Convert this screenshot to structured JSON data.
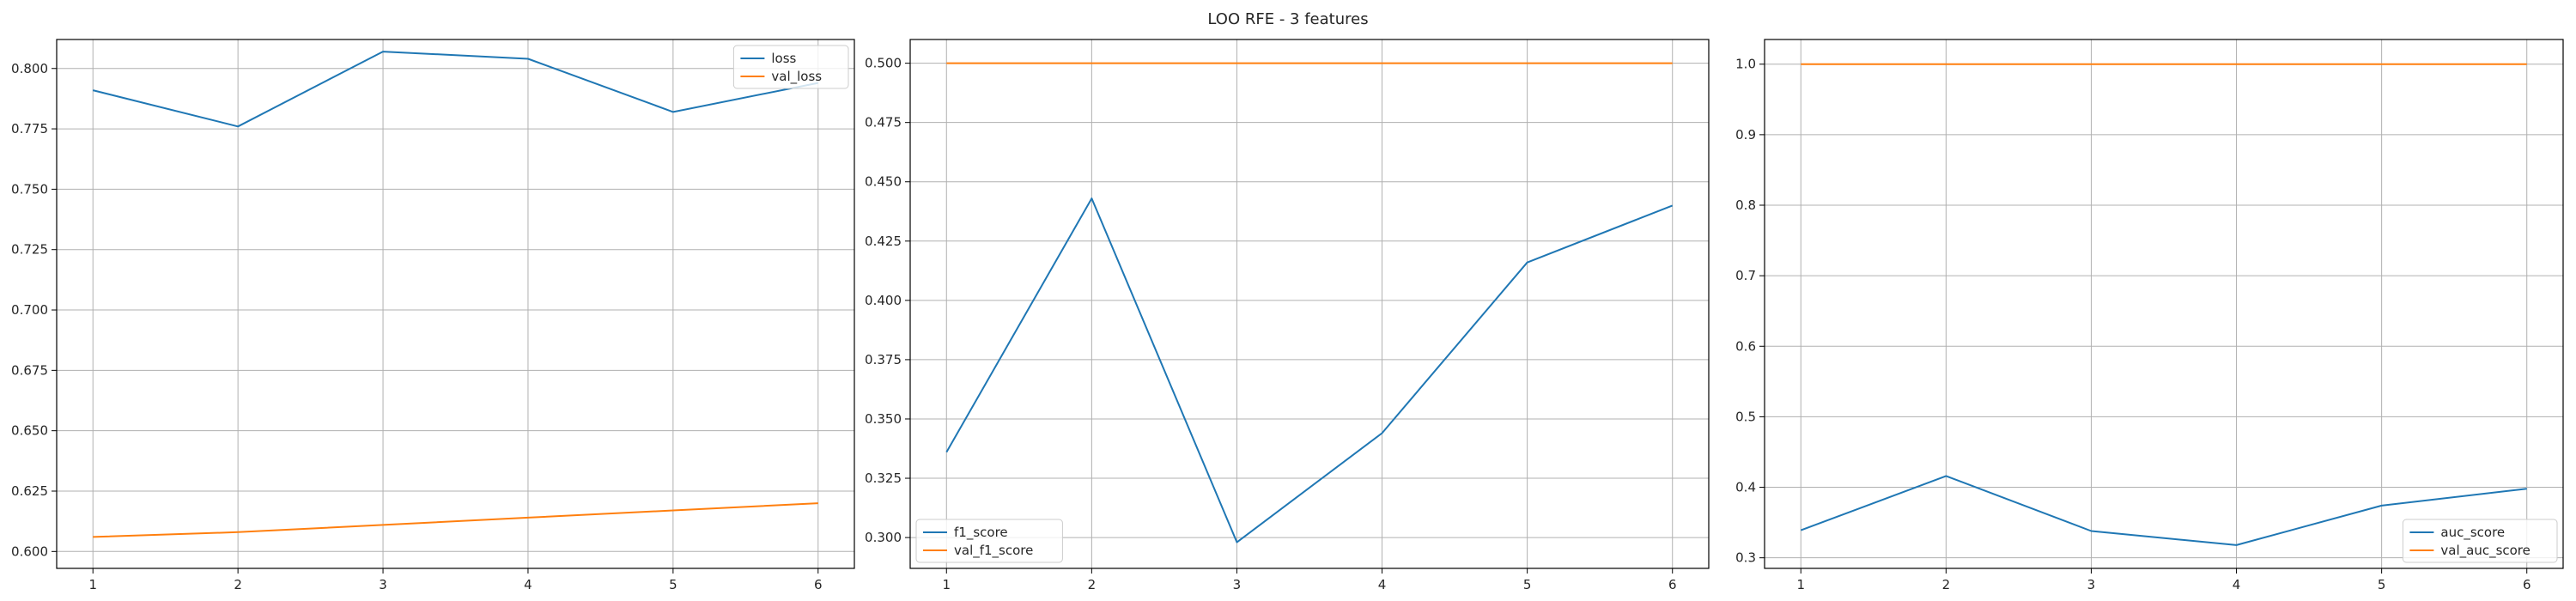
{
  "figure": {
    "title": "LOO RFE - 3 features"
  },
  "colors": {
    "train": "#1f77b4",
    "val": "#ff7f0e",
    "grid": "#b0b0b0",
    "axes": "#000000"
  },
  "chart_data": [
    {
      "type": "line",
      "x": [
        1,
        2,
        3,
        4,
        5,
        6
      ],
      "ylim": [
        0.593,
        0.812
      ],
      "xlim": [
        0.75,
        6.25
      ],
      "yticks": [
        0.6,
        0.625,
        0.65,
        0.675,
        0.7,
        0.725,
        0.75,
        0.775,
        0.8
      ],
      "ytick_labels": [
        "0.600",
        "0.625",
        "0.650",
        "0.675",
        "0.700",
        "0.725",
        "0.750",
        "0.775",
        "0.800"
      ],
      "grid": true,
      "legend": "upper right",
      "series": [
        {
          "name": "loss",
          "color": "train",
          "values": [
            0.791,
            0.776,
            0.807,
            0.804,
            0.782,
            0.794
          ]
        },
        {
          "name": "val_loss",
          "color": "val",
          "values": [
            0.606,
            0.608,
            0.611,
            0.614,
            0.617,
            0.62
          ]
        }
      ]
    },
    {
      "type": "line",
      "x": [
        1,
        2,
        3,
        4,
        5,
        6
      ],
      "ylim": [
        0.287,
        0.51
      ],
      "xlim": [
        0.75,
        6.25
      ],
      "yticks": [
        0.3,
        0.325,
        0.35,
        0.375,
        0.4,
        0.425,
        0.45,
        0.475,
        0.5
      ],
      "ytick_labels": [
        "0.300",
        "0.325",
        "0.350",
        "0.375",
        "0.400",
        "0.425",
        "0.450",
        "0.475",
        "0.500"
      ],
      "grid": true,
      "legend": "lower left",
      "series": [
        {
          "name": "f1_score",
          "color": "train",
          "values": [
            0.336,
            0.443,
            0.298,
            0.344,
            0.416,
            0.44
          ]
        },
        {
          "name": "val_f1_score",
          "color": "val",
          "values": [
            0.5,
            0.5,
            0.5,
            0.5,
            0.5,
            0.5
          ]
        }
      ]
    },
    {
      "type": "line",
      "x": [
        1,
        2,
        3,
        4,
        5,
        6
      ],
      "ylim": [
        0.285,
        1.035
      ],
      "xlim": [
        0.75,
        6.25
      ],
      "yticks": [
        0.3,
        0.4,
        0.5,
        0.6,
        0.7,
        0.8,
        0.9,
        1.0
      ],
      "ytick_labels": [
        "0.3",
        "0.4",
        "0.5",
        "0.6",
        "0.7",
        "0.8",
        "0.9",
        "1.0"
      ],
      "grid": true,
      "legend": "lower right",
      "series": [
        {
          "name": "auc_score",
          "color": "train",
          "values": [
            0.339,
            0.416,
            0.338,
            0.318,
            0.374,
            0.398
          ]
        },
        {
          "name": "val_auc_score",
          "color": "val",
          "values": [
            1.0,
            1.0,
            1.0,
            1.0,
            1.0,
            1.0
          ]
        }
      ]
    }
  ]
}
